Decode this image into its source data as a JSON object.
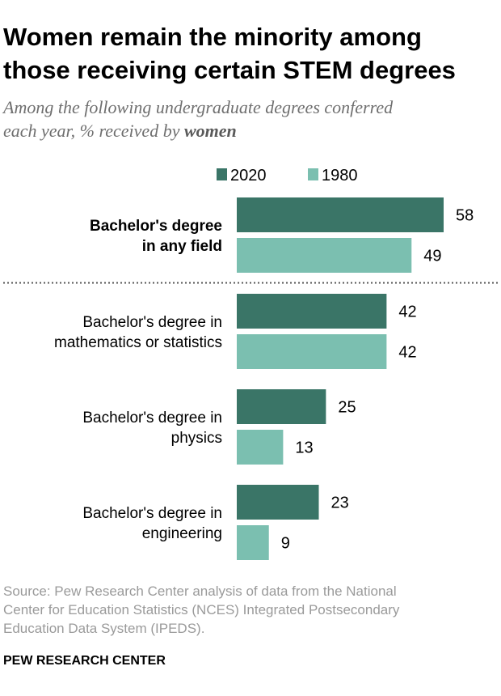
{
  "title_lines": [
    "Women remain the minority among",
    "those receiving certain STEM degrees"
  ],
  "subtitle": {
    "line1": "Among the following undergraduate degrees conferred",
    "line2_prefix": "each year, % received by ",
    "line2_emphasis": "women"
  },
  "colors": {
    "2020": "#3a7567",
    "1980": "#7bbfb0"
  },
  "chart_data": {
    "type": "bar",
    "orientation": "horizontal",
    "categories": [
      "Bachelor's degree in any field",
      "Bachelor's degree in mathematics or statistics",
      "Bachelor's degree in physics",
      "Bachelor's degree in engineering"
    ],
    "category_lines": [
      [
        "Bachelor's degree",
        "in any field"
      ],
      [
        "Bachelor's degree in",
        "mathematics or statistics"
      ],
      [
        "Bachelor's degree in",
        "physics"
      ],
      [
        "Bachelor's degree in",
        "engineering"
      ]
    ],
    "category_bold": [
      true,
      false,
      false,
      false
    ],
    "series": [
      {
        "name": "2020",
        "values": [
          58,
          42,
          25,
          23
        ]
      },
      {
        "name": "1980",
        "values": [
          49,
          42,
          13,
          9
        ]
      }
    ],
    "legend_position": "top",
    "grid": false,
    "separator_after_category": 0
  },
  "source_lines": [
    "Source: Pew Research Center analysis of data from the National",
    "Center for Education Statistics (NCES) Integrated Postsecondary",
    "Education Data System (IPEDS)."
  ],
  "brand": "PEW RESEARCH CENTER"
}
